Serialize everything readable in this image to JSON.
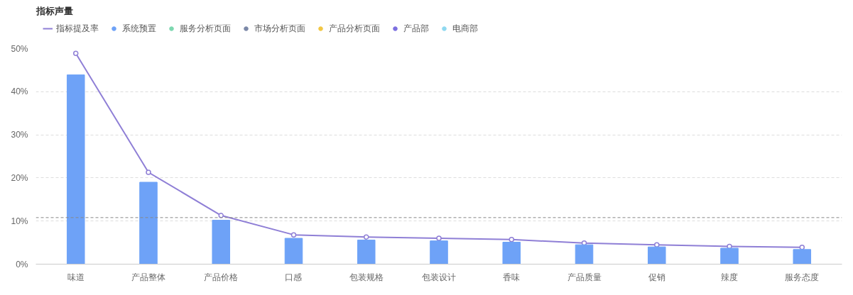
{
  "chart_data": {
    "type": "bar",
    "title": "指标声量",
    "categories": [
      "味道",
      "产品整体",
      "产品价格",
      "口感",
      "包装规格",
      "包装设计",
      "香味",
      "产品质量",
      "促销",
      "辣度",
      "服务态度"
    ],
    "series": [
      {
        "name": "指标提及率",
        "type": "line",
        "color": "#8f7fd6",
        "marker": "circle",
        "values": [
          48.9,
          21.3,
          11.3,
          6.8,
          6.3,
          6.0,
          5.7,
          4.9,
          4.5,
          4.1,
          3.9
        ]
      },
      {
        "name": "系统预置",
        "color": "#6ea2f7",
        "values": [
          43.9,
          19.0,
          10.2,
          6.0,
          5.6,
          5.4,
          5.1,
          4.5,
          4.0,
          3.7,
          3.4
        ]
      },
      {
        "name": "服务分析页面",
        "color": "#7dd8b0",
        "values": [
          null,
          null,
          null,
          null,
          null,
          null,
          null,
          null,
          null,
          null,
          null
        ]
      },
      {
        "name": "市场分析页面",
        "color": "#7b88a8",
        "values": [
          null,
          null,
          null,
          null,
          null,
          null,
          null,
          null,
          null,
          null,
          null
        ]
      },
      {
        "name": "产品分析页面",
        "color": "#f2c744",
        "values": [
          null,
          null,
          null,
          null,
          null,
          null,
          null,
          null,
          null,
          null,
          null
        ]
      },
      {
        "name": "产品部",
        "color": "#7c6fe0",
        "values": [
          null,
          null,
          null,
          null,
          null,
          null,
          null,
          null,
          null,
          null,
          null
        ]
      },
      {
        "name": "电商部",
        "color": "#8fd9f0",
        "values": [
          null,
          null,
          null,
          null,
          null,
          null,
          null,
          null,
          null,
          null,
          null
        ]
      }
    ],
    "ylim": [
      0,
      50
    ],
    "yticks": [
      {
        "value": 0,
        "label": "0%"
      },
      {
        "value": 10,
        "label": "10%"
      },
      {
        "value": 20,
        "label": "20%"
      },
      {
        "value": 30,
        "label": "30%"
      },
      {
        "value": 40,
        "label": "40%"
      },
      {
        "value": 50,
        "label": "50%"
      }
    ],
    "ref_lines": [
      {
        "axis": "y",
        "value": 10.8,
        "color": "#888888",
        "line_style": "dashed"
      }
    ],
    "grid": "y",
    "legend": "top left"
  }
}
